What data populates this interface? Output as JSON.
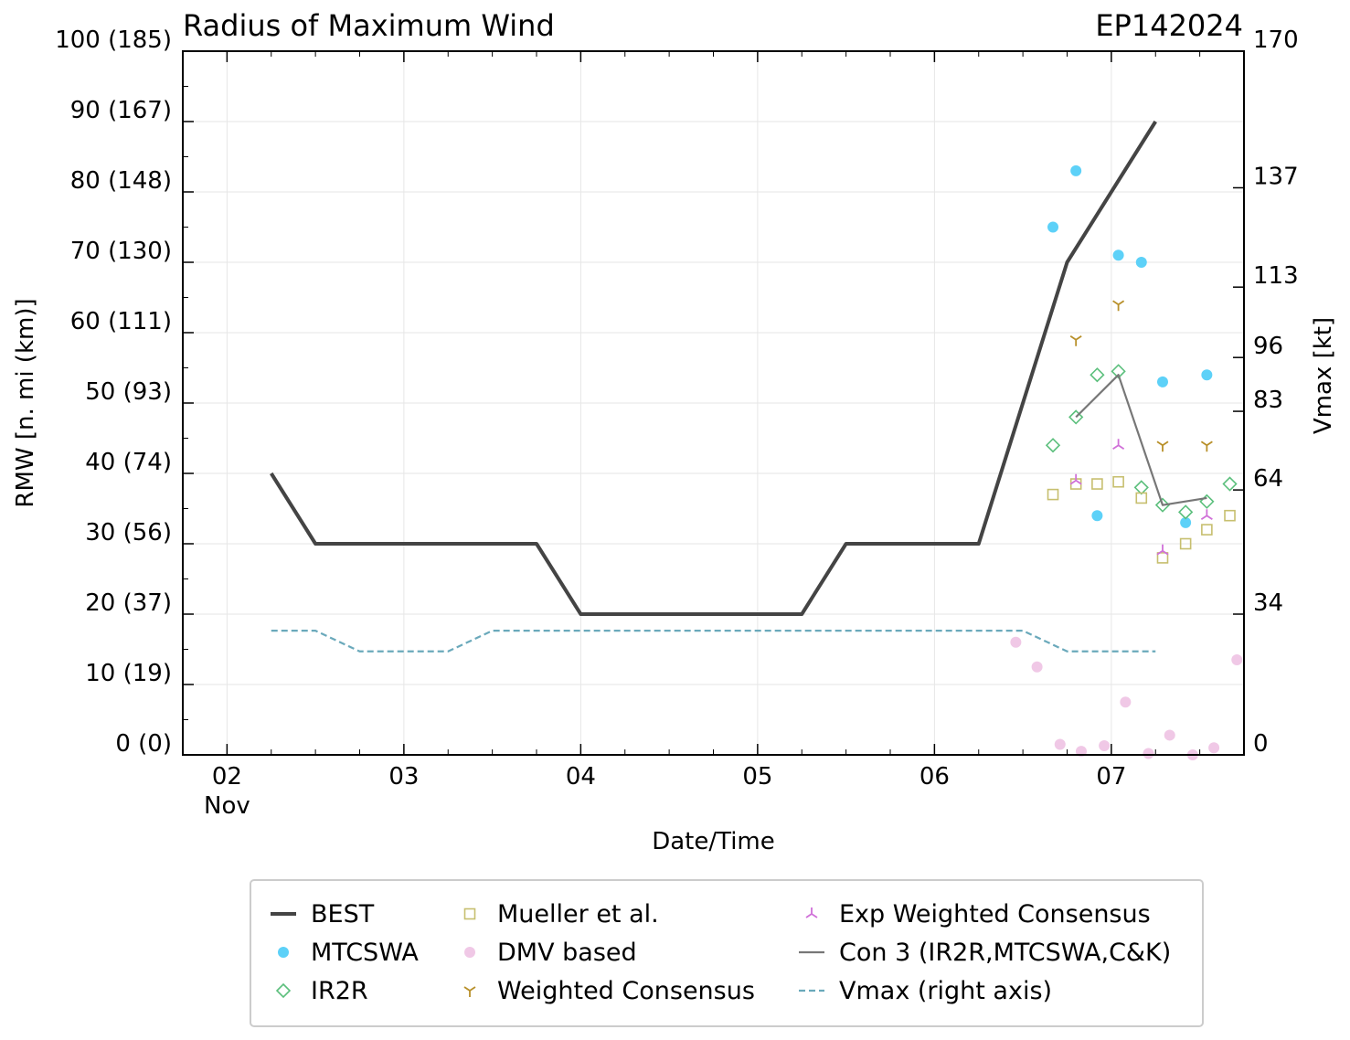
{
  "chart_data": {
    "type": "line",
    "title": "Radius of Maximum Wind",
    "storm_id": "EP142024",
    "xlabel": "Date/Time",
    "ylabel": "RMW [n. mi (km)]",
    "ylabel_right": "Vmax [kt]",
    "xlim": [
      1.75,
      7.75
    ],
    "ylim": [
      0,
      100
    ],
    "ylim_right": [
      0,
      170
    ],
    "x_ticks": [
      {
        "value": 2,
        "label": "02"
      },
      {
        "value": 3,
        "label": "03"
      },
      {
        "value": 4,
        "label": "04"
      },
      {
        "value": 5,
        "label": "05"
      },
      {
        "value": 6,
        "label": "06"
      },
      {
        "value": 7,
        "label": "07"
      }
    ],
    "x_month_label": "Nov",
    "y_ticks": [
      {
        "value": 0,
        "label": "0 (0)"
      },
      {
        "value": 10,
        "label": "10 (19)"
      },
      {
        "value": 20,
        "label": "20 (37)"
      },
      {
        "value": 30,
        "label": "30 (56)"
      },
      {
        "value": 40,
        "label": "40 (74)"
      },
      {
        "value": 50,
        "label": "50 (93)"
      },
      {
        "value": 60,
        "label": "60 (111)"
      },
      {
        "value": 70,
        "label": "70 (130)"
      },
      {
        "value": 80,
        "label": "80 (148)"
      },
      {
        "value": 90,
        "label": "90 (167)"
      },
      {
        "value": 100,
        "label": "100 (185)"
      }
    ],
    "y_right_ticks": [
      {
        "value": 0,
        "label": "0"
      },
      {
        "value": 34,
        "label": "34"
      },
      {
        "value": 64,
        "label": "64"
      },
      {
        "value": 83,
        "label": "83"
      },
      {
        "value": 96,
        "label": "96"
      },
      {
        "value": 113,
        "label": "113"
      },
      {
        "value": 137,
        "label": "137"
      },
      {
        "value": 170,
        "label": "170"
      }
    ],
    "grid": true,
    "series": [
      {
        "name": "BEST",
        "kind": "line",
        "color": "#444444",
        "x": [
          2.25,
          2.5,
          3.75,
          4.0,
          5.25,
          5.5,
          6.25,
          6.75,
          7.25
        ],
        "y": [
          40,
          30,
          30,
          20,
          20,
          30,
          30,
          70,
          90
        ]
      },
      {
        "name": "MTCSWA",
        "kind": "marker-circle",
        "color": "#5dd1f8",
        "x": [
          6.67,
          6.8,
          6.92,
          7.04,
          7.17,
          7.29,
          7.42,
          7.54
        ],
        "y": [
          75,
          83,
          34,
          71,
          70,
          53,
          33,
          54
        ]
      },
      {
        "name": "IR2R",
        "kind": "marker-diamond",
        "color": "#5bbf7c",
        "x": [
          6.67,
          6.8,
          6.92,
          7.04,
          7.17,
          7.29,
          7.42,
          7.54,
          7.67
        ],
        "y": [
          44,
          48,
          54,
          54.5,
          38,
          35.5,
          34.5,
          36,
          38.5
        ]
      },
      {
        "name": "Mueller et al.",
        "kind": "marker-square",
        "color": "#c7bf6f",
        "x": [
          6.67,
          6.8,
          6.92,
          7.04,
          7.17,
          7.29,
          7.42,
          7.54,
          7.67
        ],
        "y": [
          37,
          38.5,
          38.5,
          38.8,
          36.5,
          28,
          30,
          32,
          34
        ]
      },
      {
        "name": "DMV based",
        "kind": "marker-circle",
        "color": "#f0c8e6",
        "x": [
          6.46,
          6.58,
          6.71,
          6.83,
          6.96,
          7.08,
          7.21,
          7.33,
          7.46,
          7.58,
          7.71
        ],
        "y": [
          16,
          12.5,
          1.5,
          0.5,
          1.3,
          7.5,
          0.2,
          2.8,
          0,
          1,
          13.5
        ]
      },
      {
        "name": "Weighted Consensus",
        "kind": "marker-tri-down",
        "color": "#b8902a",
        "x": [
          6.8,
          7.04,
          7.29,
          7.54
        ],
        "y": [
          59,
          64,
          44,
          44
        ]
      },
      {
        "name": "Exp Weighted Consensus",
        "kind": "marker-tri-up",
        "color": "#d070d8",
        "x": [
          6.8,
          7.04,
          7.29,
          7.54
        ],
        "y": [
          39,
          44,
          29,
          34
        ]
      },
      {
        "name": "Con 3 (IR2R,MTCSWA,C&K)",
        "kind": "line",
        "color": "#777777",
        "x": [
          6.8,
          7.04,
          7.29,
          7.54
        ],
        "y": [
          48,
          54,
          35.5,
          36.5
        ]
      },
      {
        "name": "Vmax (right axis)",
        "kind": "dashed-line",
        "axis": "right",
        "color": "#6aa9bb",
        "x": [
          2.25,
          2.5,
          2.75,
          3.25,
          3.5,
          6.5,
          6.75,
          7.25
        ],
        "y": [
          30,
          30,
          25,
          25,
          30,
          30,
          25,
          25
        ]
      }
    ],
    "legend": {
      "placement": "bottom",
      "columns": 3,
      "entries": [
        "BEST",
        "MTCSWA",
        "IR2R",
        "Mueller et al.",
        "DMV based",
        "Weighted Consensus",
        "Exp Weighted Consensus",
        "Con 3 (IR2R,MTCSWA,C&K)",
        "Vmax (right axis)"
      ]
    }
  }
}
